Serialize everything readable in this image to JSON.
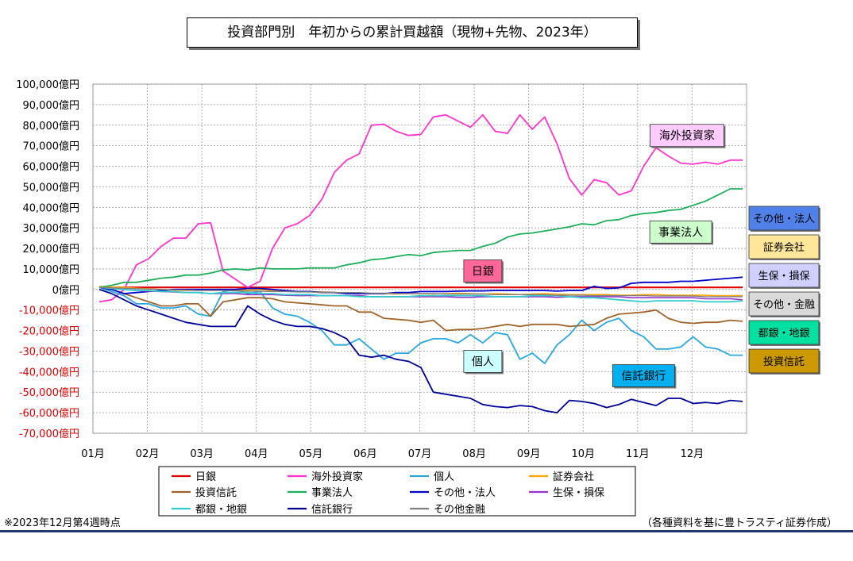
{
  "chart_data": {
    "type": "line",
    "title": "投資部門別　年初からの累計買越額（現物+先物、2023年）",
    "y_unit_suffix": "億円",
    "ylim": [
      -70000,
      100000
    ],
    "y_ticks": [
      100000,
      90000,
      80000,
      70000,
      60000,
      50000,
      40000,
      30000,
      20000,
      10000,
      0,
      -10000,
      -20000,
      -30000,
      -40000,
      -50000,
      -60000,
      -70000
    ],
    "y_tick_labels": [
      "100,000億円",
      "90,000億円",
      "80,000億円",
      "70,000億円",
      "60,000億円",
      "50,000億円",
      "40,000億円",
      "30,000億円",
      "20,000億円",
      "10,000億円",
      "0億円",
      "-10,000億円",
      "-20,000億円",
      "-30,000億円",
      "-40,000億円",
      "-50,000億円",
      "-60,000億円",
      "-70,000億円"
    ],
    "x_tick_labels": [
      "01月",
      "02月",
      "03月",
      "04月",
      "05月",
      "06月",
      "07月",
      "08月",
      "09月",
      "10月",
      "11月",
      "12月"
    ],
    "grid": true,
    "legend_position": "bottom",
    "weeks": 53,
    "series": [
      {
        "name": "日銀",
        "color": "#e00000",
        "width": 2.2,
        "values": [
          1000,
          1000,
          1000,
          1000,
          1000,
          1000,
          1000,
          1000,
          1000,
          1000,
          1000,
          1000,
          1000,
          1000,
          1000,
          1000,
          1000,
          1000,
          1000,
          1000,
          1000,
          1000,
          1000,
          1000,
          1000,
          1000,
          1000,
          1000,
          1000,
          1000,
          1000,
          1000,
          1000,
          1000,
          1000,
          1000,
          1000,
          1000,
          1000,
          1000,
          1000,
          1000,
          1000,
          1000,
          1000,
          1000,
          1000,
          1000,
          1000,
          1000,
          1000,
          1000,
          1000
        ]
      },
      {
        "name": "海外投資家",
        "color": "#ff33cc",
        "width": 1.8,
        "values": [
          -6000,
          -5000,
          0,
          12000,
          15000,
          21000,
          25000,
          25000,
          32000,
          32500,
          9000,
          5000,
          1000,
          4000,
          20000,
          30000,
          32000,
          36000,
          44000,
          57000,
          63000,
          66000,
          80000,
          80500,
          77000,
          75000,
          75500,
          84000,
          85000,
          82000,
          79000,
          85000,
          77000,
          76000,
          85000,
          78000,
          84000,
          71000,
          54000,
          46000,
          53500,
          52000,
          46000,
          48000,
          60000,
          69000,
          65000,
          61500,
          61000,
          62000,
          61000,
          63000,
          63000
        ]
      },
      {
        "name": "個人",
        "color": "#2aa7e0",
        "width": 1.8,
        "values": [
          1000,
          -1000,
          -3000,
          -7000,
          -7000,
          -9000,
          -9000,
          -8000,
          -12000,
          -13000,
          -1000,
          0,
          -2000,
          -1000,
          -9000,
          -12000,
          -13000,
          -16000,
          -20000,
          -27000,
          -27000,
          -24000,
          -29000,
          -34000,
          -31000,
          -31000,
          -26000,
          -24000,
          -24000,
          -26000,
          -22000,
          -26000,
          -21000,
          -22000,
          -34000,
          -31000,
          -36000,
          -27000,
          -22000,
          -15000,
          -20000,
          -16000,
          -14000,
          -20000,
          -23000,
          -29000,
          -29000,
          -28000,
          -23000,
          -28000,
          -29000,
          -32000,
          -32000
        ]
      },
      {
        "name": "証券会社",
        "color": "#ffa500",
        "width": 1.6,
        "values": [
          1500,
          1200,
          1000,
          600,
          300,
          0,
          -300,
          -500,
          -300,
          0,
          -200,
          -500,
          -300,
          0,
          -500,
          -800,
          -1000,
          -1000,
          -1200,
          -1500,
          -1500,
          -1800,
          -2000,
          -2000,
          -2200,
          -2000,
          -2000,
          -2200,
          -2000,
          -1800,
          -2000,
          -2200,
          -2000,
          -2200,
          -2500,
          -2200,
          -2000,
          -2200,
          -2500,
          -2500,
          -2500,
          -2500,
          -2800,
          -2800,
          -2500,
          -2500,
          -2800,
          -2800,
          -2800,
          -2800,
          -3000,
          -3000,
          -3000
        ]
      },
      {
        "name": "投資信託",
        "color": "#a0642b",
        "width": 1.8,
        "values": [
          1000,
          0,
          -2000,
          -4000,
          -6000,
          -8000,
          -8000,
          -7000,
          -7000,
          -13000,
          -6000,
          -5000,
          -4000,
          -4000,
          -4500,
          -6000,
          -6500,
          -7000,
          -7500,
          -8000,
          -8000,
          -11000,
          -11000,
          -14000,
          -14500,
          -15000,
          -16000,
          -15000,
          -20000,
          -19500,
          -19500,
          -19000,
          -18000,
          -17000,
          -18000,
          -17000,
          -17000,
          -17000,
          -18000,
          -17500,
          -17000,
          -14000,
          -12000,
          -11500,
          -11000,
          -10000,
          -14000,
          -16000,
          -16500,
          -16000,
          -16000,
          -15000,
          -15500
        ]
      },
      {
        "name": "事業法人",
        "color": "#1fae5a",
        "width": 1.8,
        "values": [
          1000,
          2000,
          3500,
          3500,
          4500,
          5500,
          6000,
          7000,
          7000,
          8000,
          9500,
          10000,
          9500,
          10500,
          10000,
          10000,
          10000,
          10500,
          10500,
          10500,
          12000,
          13000,
          14500,
          15000,
          16000,
          17000,
          16500,
          18000,
          18500,
          19000,
          19000,
          21000,
          22500,
          25500,
          27000,
          27500,
          28500,
          29500,
          30500,
          32000,
          31500,
          33500,
          34000,
          36000,
          37000,
          37500,
          38500,
          39000,
          41000,
          43000,
          46000,
          49000,
          49000
        ]
      },
      {
        "name": "その他・法人",
        "color": "#0000cc",
        "width": 1.8,
        "values": [
          1000,
          0,
          -2000,
          -1500,
          -1000,
          -500,
          0,
          0,
          0,
          0,
          0,
          0,
          500,
          500,
          0,
          -500,
          -1000,
          -1000,
          -1500,
          -1500,
          -2000,
          -2000,
          -2000,
          -2000,
          -1500,
          -1500,
          -1000,
          -1000,
          -1000,
          -800,
          -700,
          -700,
          -500,
          -500,
          -500,
          -500,
          -500,
          -800,
          -500,
          -500,
          1500,
          500,
          800,
          3000,
          3500,
          3500,
          3500,
          4000,
          4000,
          4500,
          5000,
          5500,
          6000
        ]
      },
      {
        "name": "生保・損保",
        "color": "#9933cc",
        "width": 1.6,
        "values": [
          1000,
          500,
          0,
          -500,
          -800,
          -1000,
          -1200,
          -1500,
          -1500,
          -2000,
          -2000,
          -2000,
          -2500,
          -2500,
          -2500,
          -2800,
          -3000,
          -3000,
          -3000,
          -3000,
          -3000,
          -3000,
          -3500,
          -3500,
          -3500,
          -3500,
          -3500,
          -3500,
          -3500,
          -3800,
          -3800,
          -3500,
          -3500,
          -3500,
          -3500,
          -3500,
          -3500,
          -3800,
          -3500,
          -3500,
          -3500,
          -3500,
          -3500,
          -4000,
          -4000,
          -4000,
          -4000,
          -4000,
          -4000,
          -4500,
          -4500,
          -4500,
          -5000
        ]
      },
      {
        "name": "都銀・地銀",
        "color": "#33cccc",
        "width": 1.8,
        "values": [
          1000,
          500,
          0,
          -500,
          -500,
          -1000,
          -1000,
          -1500,
          -1500,
          -2000,
          -1500,
          -1500,
          -1500,
          -2000,
          -2000,
          -2500,
          -2500,
          -2500,
          -3000,
          -3000,
          -3000,
          -3500,
          -3500,
          -3500,
          -3500,
          -3500,
          -3000,
          -3000,
          -3000,
          -3000,
          -3000,
          -3000,
          -3500,
          -3500,
          -3500,
          -3000,
          -3000,
          -3000,
          -3500,
          -4000,
          -4000,
          -4500,
          -5000,
          -5500,
          -6000,
          -5500,
          -5500,
          -5500,
          -5500,
          -6000,
          -6000,
          -6000,
          -5500
        ]
      },
      {
        "name": "信託銀行",
        "color": "#000099",
        "width": 1.8,
        "values": [
          0,
          -2000,
          -5000,
          -8000,
          -10000,
          -12000,
          -14000,
          -16000,
          -17000,
          -18000,
          -18000,
          -18000,
          -8000,
          -12000,
          -15000,
          -17000,
          -18000,
          -18000,
          -19000,
          -21000,
          -24000,
          -32000,
          -33000,
          -32000,
          -34000,
          -35000,
          -38000,
          -50000,
          -51000,
          -52000,
          -53000,
          -56000,
          -57000,
          -57500,
          -56500,
          -57000,
          -59000,
          -60000,
          -54000,
          -54500,
          -55500,
          -57500,
          -56000,
          -53500,
          -55000,
          -56500,
          -53000,
          -53000,
          -55500,
          -55000,
          -55500,
          -54000,
          -54500
        ]
      },
      {
        "name": "その他金融",
        "color": "#808080",
        "width": 1.4,
        "values": [
          1000,
          800,
          600,
          400,
          200,
          0,
          -200,
          -300,
          -500,
          -500,
          -500,
          -700,
          -800,
          -800,
          -1000,
          -1000,
          -1200,
          -1200,
          -1500,
          -1500,
          -1500,
          -1500,
          -1800,
          -1800,
          -2000,
          -2000,
          -2000,
          -2000,
          -2200,
          -2200,
          -2200,
          -2200,
          -2500,
          -2500,
          -2500,
          -2500,
          -2500,
          -2800,
          -2800,
          -2800,
          -3000,
          -3000,
          -3000,
          -3000,
          -3000,
          -3200,
          -3200,
          -3200,
          -3200,
          -3500,
          -3500,
          -3500,
          -3500
        ]
      }
    ],
    "annotations": [
      {
        "text": "海外投資家",
        "bg": "#ffccff",
        "x_week": 47.5,
        "y": 75000
      },
      {
        "text": "事業法人",
        "bg": "#ccffcc",
        "x_week": 47,
        "y": 28000
      },
      {
        "text": "日銀",
        "bg": "#ff6699",
        "x_week": 31,
        "y": 9000
      },
      {
        "text": "個人",
        "bg": "#ccffff",
        "x_week": 31,
        "y": -35000
      },
      {
        "text": "信託銀行",
        "bg": "#00b0f0",
        "x_week": 44,
        "y": -42000
      }
    ],
    "side_legend": [
      {
        "text": "その他・法人",
        "bg": "#4f81e8"
      },
      {
        "text": "証券会社",
        "bg": "#ffe699"
      },
      {
        "text": "生保・損保",
        "bg": "#d0cfff"
      },
      {
        "text": "その他・金融",
        "bg": "#d9d9d9"
      },
      {
        "text": "都銀・地銀",
        "bg": "#00e0a0"
      },
      {
        "text": "投資信託",
        "bg": "#cc9900"
      }
    ]
  },
  "notes": {
    "as_of": "※2023年12月第4週時点",
    "source": "（各種資料を基に豊トラスティ証券作成）"
  }
}
